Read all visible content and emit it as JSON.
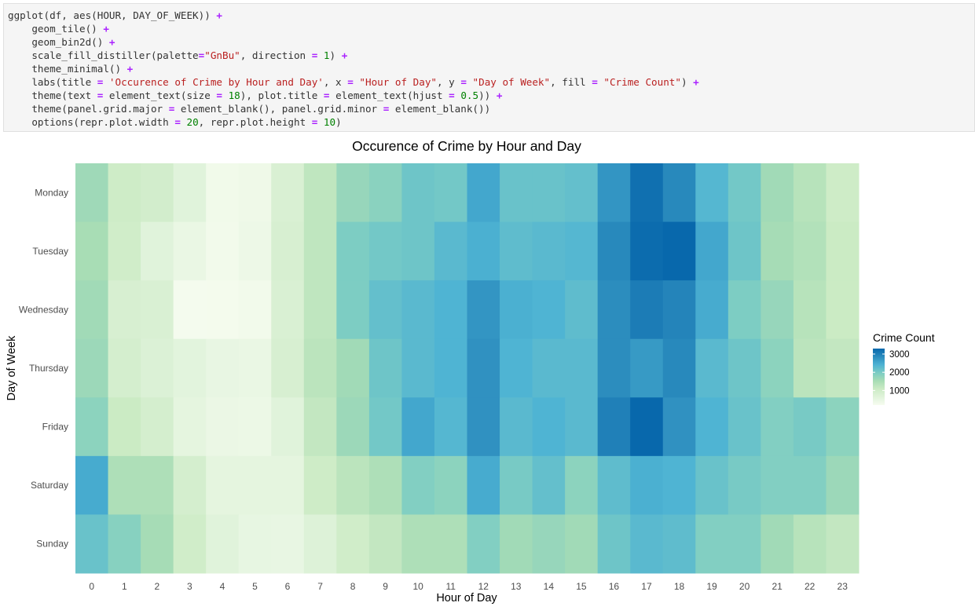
{
  "code_cell": {
    "lines": [
      [
        {
          "t": "ggplot(df, aes(HOUR, DAY_OF_WEEK)) ",
          "c": "plain"
        },
        {
          "t": "+",
          "c": "op"
        }
      ],
      [
        {
          "t": "    geom_tile() ",
          "c": "plain"
        },
        {
          "t": "+",
          "c": "op"
        }
      ],
      [
        {
          "t": "    geom_bin2d() ",
          "c": "plain"
        },
        {
          "t": "+",
          "c": "op"
        }
      ],
      [
        {
          "t": "    scale_fill_distiller(palette",
          "c": "plain"
        },
        {
          "t": "=",
          "c": "op"
        },
        {
          "t": "\"GnBu\"",
          "c": "str"
        },
        {
          "t": ", direction ",
          "c": "plain"
        },
        {
          "t": "=",
          "c": "op"
        },
        {
          "t": " ",
          "c": "plain"
        },
        {
          "t": "1",
          "c": "num"
        },
        {
          "t": ") ",
          "c": "plain"
        },
        {
          "t": "+",
          "c": "op"
        }
      ],
      [
        {
          "t": "    theme_minimal() ",
          "c": "plain"
        },
        {
          "t": "+",
          "c": "op"
        }
      ],
      [
        {
          "t": "    labs(title ",
          "c": "plain"
        },
        {
          "t": "=",
          "c": "op"
        },
        {
          "t": " ",
          "c": "plain"
        },
        {
          "t": "'Occurence of Crime by Hour and Day'",
          "c": "str"
        },
        {
          "t": ", x ",
          "c": "plain"
        },
        {
          "t": "=",
          "c": "op"
        },
        {
          "t": " ",
          "c": "plain"
        },
        {
          "t": "\"Hour of Day\"",
          "c": "str"
        },
        {
          "t": ", y ",
          "c": "plain"
        },
        {
          "t": "=",
          "c": "op"
        },
        {
          "t": " ",
          "c": "plain"
        },
        {
          "t": "\"Day of Week\"",
          "c": "str"
        },
        {
          "t": ", fill ",
          "c": "plain"
        },
        {
          "t": "=",
          "c": "op"
        },
        {
          "t": " ",
          "c": "plain"
        },
        {
          "t": "\"Crime Count\"",
          "c": "str"
        },
        {
          "t": ") ",
          "c": "plain"
        },
        {
          "t": "+",
          "c": "op"
        }
      ],
      [
        {
          "t": "    theme(text ",
          "c": "plain"
        },
        {
          "t": "=",
          "c": "op"
        },
        {
          "t": " element_text(size ",
          "c": "plain"
        },
        {
          "t": "=",
          "c": "op"
        },
        {
          "t": " ",
          "c": "plain"
        },
        {
          "t": "18",
          "c": "num"
        },
        {
          "t": "), plot.title ",
          "c": "plain"
        },
        {
          "t": "=",
          "c": "op"
        },
        {
          "t": " element_text(hjust ",
          "c": "plain"
        },
        {
          "t": "=",
          "c": "op"
        },
        {
          "t": " ",
          "c": "plain"
        },
        {
          "t": "0.5",
          "c": "num"
        },
        {
          "t": ")) ",
          "c": "plain"
        },
        {
          "t": "+",
          "c": "op"
        }
      ],
      [
        {
          "t": "    theme(panel.grid.major ",
          "c": "plain"
        },
        {
          "t": "=",
          "c": "op"
        },
        {
          "t": " element_blank(), panel.grid.minor ",
          "c": "plain"
        },
        {
          "t": "=",
          "c": "op"
        },
        {
          "t": " element_blank())",
          "c": "plain"
        }
      ],
      [
        {
          "t": "    options(repr.plot.width ",
          "c": "plain"
        },
        {
          "t": "=",
          "c": "op"
        },
        {
          "t": " ",
          "c": "plain"
        },
        {
          "t": "20",
          "c": "num"
        },
        {
          "t": ", repr.plot.height ",
          "c": "plain"
        },
        {
          "t": "=",
          "c": "op"
        },
        {
          "t": " ",
          "c": "plain"
        },
        {
          "t": "10",
          "c": "num"
        },
        {
          "t": ")",
          "c": "plain"
        }
      ]
    ]
  },
  "chart_data": {
    "type": "heatmap",
    "title": "Occurence of Crime by Hour and Day",
    "xlabel": "Hour of Day",
    "ylabel": "Day of Week",
    "x": [
      "0",
      "1",
      "2",
      "3",
      "4",
      "5",
      "6",
      "7",
      "8",
      "9",
      "10",
      "11",
      "12",
      "13",
      "14",
      "15",
      "16",
      "17",
      "18",
      "19",
      "20",
      "21",
      "22",
      "23"
    ],
    "y": [
      "Monday",
      "Tuesday",
      "Wednesday",
      "Thursday",
      "Friday",
      "Saturday",
      "Sunday"
    ],
    "values": [
      [
        1620,
        1050,
        950,
        650,
        320,
        360,
        800,
        1250,
        1700,
        1820,
        2100,
        2050,
        2550,
        2150,
        2150,
        2200,
        2750,
        3200,
        2900,
        2350,
        2050,
        1600,
        1350,
        1050
      ],
      [
        1530,
        1000,
        650,
        450,
        300,
        400,
        850,
        1250,
        1950,
        2050,
        2100,
        2300,
        2450,
        2250,
        2300,
        2350,
        2900,
        3250,
        3300,
        2550,
        2100,
        1550,
        1400,
        1100
      ],
      [
        1600,
        850,
        800,
        250,
        260,
        300,
        800,
        1250,
        1950,
        2200,
        2300,
        2400,
        2750,
        2450,
        2400,
        2250,
        2850,
        3050,
        2950,
        2500,
        1950,
        1700,
        1350,
        1100
      ],
      [
        1650,
        900,
        750,
        600,
        480,
        450,
        850,
        1300,
        1600,
        2100,
        2300,
        2400,
        2800,
        2400,
        2300,
        2300,
        2850,
        2700,
        2900,
        2300,
        2100,
        1800,
        1300,
        1200
      ],
      [
        1800,
        1100,
        900,
        550,
        440,
        420,
        650,
        1200,
        1650,
        2050,
        2550,
        2350,
        2800,
        2300,
        2400,
        2300,
        3000,
        3300,
        2800,
        2400,
        2150,
        1900,
        2000,
        1800
      ],
      [
        2500,
        1450,
        1450,
        900,
        550,
        550,
        550,
        1050,
        1300,
        1450,
        1900,
        1800,
        2500,
        2000,
        2200,
        1800,
        2250,
        2450,
        2400,
        2150,
        2000,
        1900,
        1900,
        1650
      ],
      [
        2150,
        1850,
        1550,
        1000,
        650,
        500,
        480,
        700,
        1000,
        1200,
        1450,
        1450,
        1900,
        1600,
        1700,
        1600,
        2100,
        2300,
        2250,
        1900,
        1900,
        1600,
        1350,
        1200
      ]
    ],
    "legend": {
      "title": "Crime Count",
      "ticks": [
        1000,
        2000,
        3000
      ],
      "min": 200,
      "max": 3300,
      "position": "right"
    },
    "palette": [
      "#f7fcf0",
      "#e0f3db",
      "#ccebc5",
      "#a8ddb5",
      "#7bccc4",
      "#4eb3d3",
      "#2b8cbe",
      "#0868ac"
    ],
    "grid": false
  }
}
